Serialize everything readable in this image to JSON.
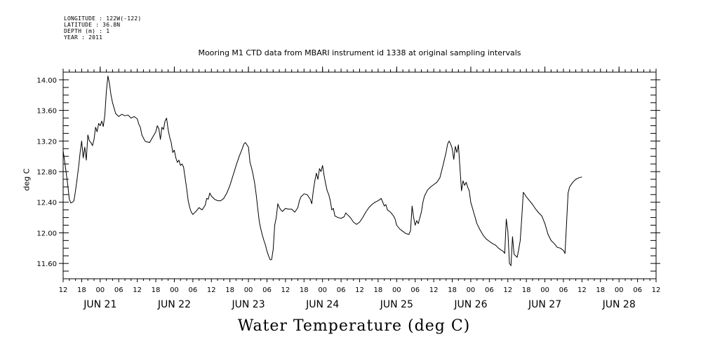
{
  "metadata": {
    "longitude": "LONGITUDE : 122W(-122)",
    "latitude": "LATITUDE : 36.8N",
    "depth": "DEPTH (m) : 1",
    "year": "YEAR : 2011"
  },
  "chart_data": {
    "type": "line",
    "title": "Mooring M1 CTD data from MBARI instrument id 1338 at original sampling intervals",
    "ylabel": "deg C",
    "xlabel": "Water Temperature (deg C)",
    "ylim": [
      11.4,
      14.1
    ],
    "xlim": [
      -12,
      180
    ],
    "y_ticks": [
      "11.60",
      "12.00",
      "12.40",
      "12.80",
      "13.20",
      "13.60",
      "14.00"
    ],
    "y_tick_values": [
      11.6,
      12.0,
      12.4,
      12.8,
      13.2,
      13.6,
      14.0
    ],
    "hour_ticks": [
      "12",
      "18",
      "00",
      "06",
      "12",
      "18",
      "00",
      "06",
      "12",
      "18",
      "00",
      "06",
      "12",
      "18",
      "00",
      "06",
      "12",
      "18",
      "00",
      "06",
      "12",
      "18",
      "00",
      "06",
      "12",
      "18",
      "00",
      "06",
      "12",
      "18",
      "00",
      "06",
      "12"
    ],
    "day_labels": [
      {
        "label": "JUN 21",
        "x": 0
      },
      {
        "label": "JUN 22",
        "x": 24
      },
      {
        "label": "JUN 23",
        "x": 48
      },
      {
        "label": "JUN 24",
        "x": 72
      },
      {
        "label": "JUN 25",
        "x": 96
      },
      {
        "label": "JUN 26",
        "x": 120
      },
      {
        "label": "JUN 27",
        "x": 144
      },
      {
        "label": "JUN 28",
        "x": 168
      }
    ],
    "x_unit_note": "x = hours relative to 2011-06-21 00:00",
    "series": [
      {
        "values": [
          [
            -12,
            13.07
          ],
          [
            -11.5,
            12.93
          ],
          [
            -11,
            12.78
          ],
          [
            -10.5,
            12.62
          ],
          [
            -10,
            12.44
          ],
          [
            -9.5,
            12.39
          ],
          [
            -9,
            12.4
          ],
          [
            -8.5,
            12.42
          ],
          [
            -8,
            12.55
          ],
          [
            -7.5,
            12.7
          ],
          [
            -7,
            12.86
          ],
          [
            -6.5,
            13.05
          ],
          [
            -6,
            13.2
          ],
          [
            -5.5,
            12.98
          ],
          [
            -5,
            13.12
          ],
          [
            -4.5,
            12.95
          ],
          [
            -4,
            13.28
          ],
          [
            -3.5,
            13.2
          ],
          [
            -3,
            13.18
          ],
          [
            -2.5,
            13.14
          ],
          [
            -2,
            13.22
          ],
          [
            -1.5,
            13.38
          ],
          [
            -1,
            13.32
          ],
          [
            -0.5,
            13.43
          ],
          [
            0,
            13.4
          ],
          [
            0.5,
            13.46
          ],
          [
            1,
            13.39
          ],
          [
            1.5,
            13.54
          ],
          [
            2,
            13.85
          ],
          [
            2.5,
            14.05
          ],
          [
            3,
            13.95
          ],
          [
            3.5,
            13.8
          ],
          [
            4,
            13.7
          ],
          [
            5,
            13.56
          ],
          [
            6,
            13.52
          ],
          [
            7,
            13.55
          ],
          [
            8,
            13.53
          ],
          [
            9,
            13.54
          ],
          [
            10,
            13.5
          ],
          [
            11,
            13.52
          ],
          [
            12,
            13.49
          ],
          [
            12.5,
            13.42
          ],
          [
            13,
            13.38
          ],
          [
            13.5,
            13.28
          ],
          [
            14,
            13.24
          ],
          [
            14.5,
            13.2
          ],
          [
            15,
            13.19
          ],
          [
            16,
            13.18
          ],
          [
            17,
            13.25
          ],
          [
            18,
            13.32
          ],
          [
            18.5,
            13.4
          ],
          [
            19,
            13.36
          ],
          [
            19.5,
            13.22
          ],
          [
            20,
            13.38
          ],
          [
            20.5,
            13.35
          ],
          [
            21,
            13.46
          ],
          [
            21.5,
            13.5
          ],
          [
            22,
            13.35
          ],
          [
            22.5,
            13.25
          ],
          [
            23,
            13.18
          ],
          [
            23.5,
            13.05
          ],
          [
            24,
            13.08
          ],
          [
            24.5,
            12.98
          ],
          [
            25,
            12.92
          ],
          [
            25.5,
            12.95
          ],
          [
            26,
            12.88
          ],
          [
            26.5,
            12.9
          ],
          [
            27,
            12.86
          ],
          [
            27.5,
            12.72
          ],
          [
            28,
            12.58
          ],
          [
            28.5,
            12.42
          ],
          [
            29,
            12.33
          ],
          [
            29.5,
            12.27
          ],
          [
            30,
            12.24
          ],
          [
            31,
            12.28
          ],
          [
            32,
            12.33
          ],
          [
            33,
            12.3
          ],
          [
            34,
            12.36
          ],
          [
            34.5,
            12.45
          ],
          [
            35,
            12.44
          ],
          [
            35.5,
            12.52
          ],
          [
            36,
            12.48
          ],
          [
            37,
            12.44
          ],
          [
            38,
            12.42
          ],
          [
            39,
            12.42
          ],
          [
            40,
            12.45
          ],
          [
            41,
            12.52
          ],
          [
            42,
            12.62
          ],
          [
            43,
            12.75
          ],
          [
            44,
            12.88
          ],
          [
            45,
            13.0
          ],
          [
            46,
            13.1
          ],
          [
            46.5,
            13.16
          ],
          [
            47,
            13.18
          ],
          [
            48,
            13.12
          ],
          [
            48.5,
            12.92
          ],
          [
            49,
            12.85
          ],
          [
            49.5,
            12.76
          ],
          [
            50,
            12.65
          ],
          [
            50.5,
            12.5
          ],
          [
            51,
            12.32
          ],
          [
            51.5,
            12.15
          ],
          [
            52,
            12.05
          ],
          [
            52.5,
            11.97
          ],
          [
            53,
            11.9
          ],
          [
            53.5,
            11.84
          ],
          [
            54,
            11.76
          ],
          [
            54.5,
            11.7
          ],
          [
            55,
            11.65
          ],
          [
            55.5,
            11.65
          ],
          [
            56,
            11.78
          ],
          [
            56.5,
            12.1
          ],
          [
            57,
            12.2
          ],
          [
            57.5,
            12.38
          ],
          [
            58,
            12.33
          ],
          [
            58.5,
            12.3
          ],
          [
            59,
            12.28
          ],
          [
            60,
            12.32
          ],
          [
            61,
            12.31
          ],
          [
            62,
            12.31
          ],
          [
            63,
            12.27
          ],
          [
            64,
            12.33
          ],
          [
            64.5,
            12.42
          ],
          [
            65,
            12.47
          ],
          [
            66,
            12.51
          ],
          [
            67,
            12.5
          ],
          [
            68,
            12.44
          ],
          [
            68.5,
            12.38
          ],
          [
            69,
            12.55
          ],
          [
            69.5,
            12.68
          ],
          [
            70,
            12.78
          ],
          [
            70.5,
            12.7
          ],
          [
            71,
            12.84
          ],
          [
            71.5,
            12.8
          ],
          [
            72,
            12.88
          ],
          [
            72.5,
            12.75
          ],
          [
            73,
            12.64
          ],
          [
            73.5,
            12.55
          ],
          [
            74,
            12.5
          ],
          [
            74.5,
            12.42
          ],
          [
            75,
            12.3
          ],
          [
            75.5,
            12.32
          ],
          [
            76,
            12.22
          ],
          [
            77,
            12.2
          ],
          [
            78,
            12.19
          ],
          [
            79,
            12.21
          ],
          [
            79.5,
            12.26
          ],
          [
            80,
            12.24
          ],
          [
            81,
            12.2
          ],
          [
            82,
            12.14
          ],
          [
            83,
            12.11
          ],
          [
            84,
            12.14
          ],
          [
            85,
            12.2
          ],
          [
            86,
            12.27
          ],
          [
            87,
            12.33
          ],
          [
            88,
            12.37
          ],
          [
            89,
            12.4
          ],
          [
            90,
            12.42
          ],
          [
            91,
            12.45
          ],
          [
            91.5,
            12.4
          ],
          [
            92,
            12.35
          ],
          [
            92.5,
            12.37
          ],
          [
            93,
            12.3
          ],
          [
            94,
            12.27
          ],
          [
            95,
            12.22
          ],
          [
            95.5,
            12.18
          ],
          [
            96,
            12.1
          ],
          [
            97,
            12.05
          ],
          [
            98,
            12.02
          ],
          [
            99,
            11.99
          ],
          [
            100,
            11.98
          ],
          [
            100.5,
            12.03
          ],
          [
            101,
            12.35
          ],
          [
            101.5,
            12.2
          ],
          [
            102,
            12.1
          ],
          [
            102.5,
            12.16
          ],
          [
            103,
            12.12
          ],
          [
            104,
            12.27
          ],
          [
            104.5,
            12.4
          ],
          [
            105,
            12.48
          ],
          [
            106,
            12.56
          ],
          [
            107,
            12.6
          ],
          [
            108,
            12.63
          ],
          [
            109,
            12.66
          ],
          [
            110,
            12.72
          ],
          [
            111,
            12.88
          ],
          [
            112,
            13.05
          ],
          [
            112.5,
            13.16
          ],
          [
            113,
            13.2
          ],
          [
            113.5,
            13.16
          ],
          [
            114,
            13.1
          ],
          [
            114.5,
            12.96
          ],
          [
            115,
            13.13
          ],
          [
            115.5,
            13.05
          ],
          [
            116,
            13.15
          ],
          [
            116.5,
            12.85
          ],
          [
            117,
            12.55
          ],
          [
            117.5,
            12.68
          ],
          [
            118,
            12.62
          ],
          [
            118.5,
            12.66
          ],
          [
            119,
            12.6
          ],
          [
            119.5,
            12.55
          ],
          [
            120,
            12.4
          ],
          [
            121,
            12.26
          ],
          [
            122,
            12.12
          ],
          [
            123,
            12.04
          ],
          [
            124,
            11.97
          ],
          [
            125,
            11.92
          ],
          [
            126,
            11.89
          ],
          [
            127,
            11.86
          ],
          [
            128,
            11.84
          ],
          [
            129,
            11.8
          ],
          [
            130,
            11.77
          ],
          [
            130.5,
            11.76
          ],
          [
            131,
            11.73
          ],
          [
            131.5,
            12.18
          ],
          [
            132,
            12.02
          ],
          [
            132.5,
            11.6
          ],
          [
            133,
            11.57
          ],
          [
            133.5,
            11.95
          ],
          [
            134,
            11.72
          ],
          [
            134.5,
            11.7
          ],
          [
            135,
            11.68
          ],
          [
            135.5,
            11.78
          ],
          [
            136,
            11.9
          ],
          [
            136.5,
            12.2
          ],
          [
            137,
            12.53
          ],
          [
            138,
            12.47
          ],
          [
            139,
            12.42
          ],
          [
            140,
            12.37
          ],
          [
            141,
            12.31
          ],
          [
            142,
            12.26
          ],
          [
            143,
            12.22
          ],
          [
            144,
            12.12
          ],
          [
            145,
            11.98
          ],
          [
            146,
            11.9
          ],
          [
            147,
            11.86
          ],
          [
            148,
            11.81
          ],
          [
            149,
            11.8
          ],
          [
            150,
            11.77
          ],
          [
            150.5,
            11.73
          ],
          [
            151,
            12.12
          ],
          [
            151.5,
            12.52
          ],
          [
            152,
            12.6
          ],
          [
            153,
            12.66
          ],
          [
            154,
            12.7
          ],
          [
            155,
            12.72
          ],
          [
            156,
            12.73
          ]
        ]
      }
    ]
  }
}
